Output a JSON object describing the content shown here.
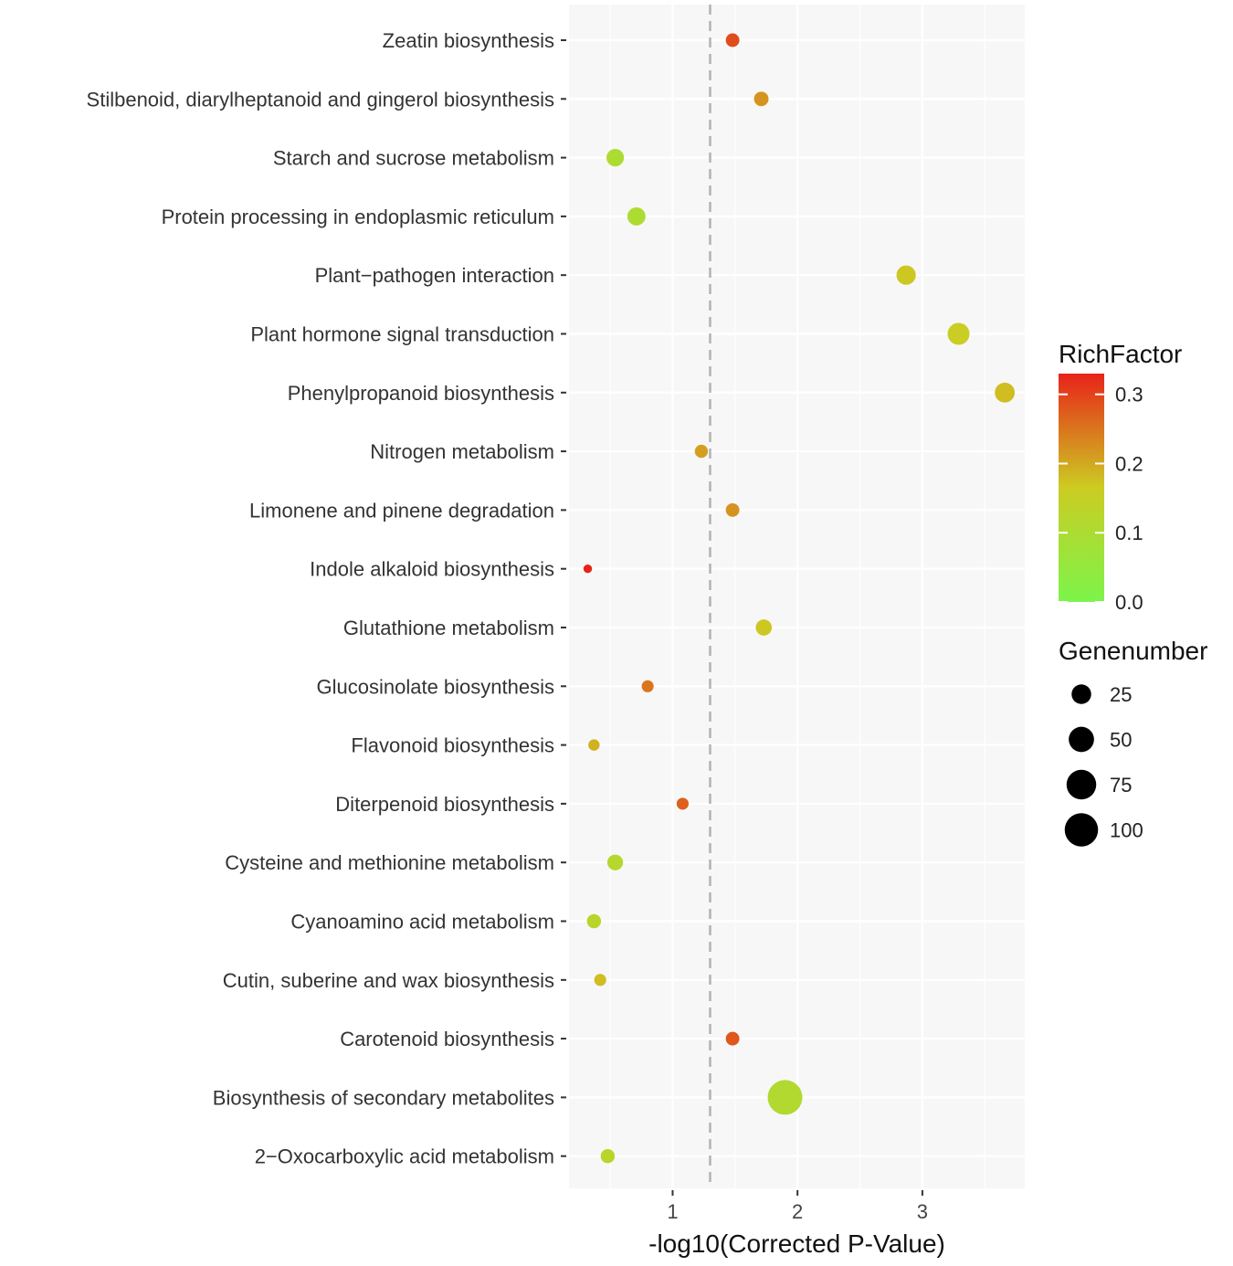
{
  "chart_data": {
    "type": "scatter",
    "title": "",
    "xlabel": "-log10(Corrected P-Value)",
    "ylabel": "",
    "xlim": [
      0.17,
      3.82
    ],
    "xticks": [
      1,
      2,
      3
    ],
    "grid": true,
    "threshold_line": {
      "x": 1.3,
      "style": "dashed"
    },
    "categories": [
      "Zeatin biosynthesis",
      "Stilbenoid, diarylheptanoid and gingerol biosynthesis",
      "Starch and sucrose metabolism",
      "Protein processing in endoplasmic reticulum",
      "Plant−pathogen interaction",
      "Plant hormone signal transduction",
      "Phenylpropanoid biosynthesis",
      "Nitrogen metabolism",
      "Limonene and pinene degradation",
      "Indole alkaloid biosynthesis",
      "Glutathione metabolism",
      "Glucosinolate biosynthesis",
      "Flavonoid biosynthesis",
      "Diterpenoid biosynthesis",
      "Cysteine and methionine metabolism",
      "Cyanoamino acid metabolism",
      "Cutin, suberine and wax biosynthesis",
      "Carotenoid biosynthesis",
      "Biosynthesis of secondary metabolites",
      "2−Oxocarboxylic acid metabolism"
    ],
    "points": [
      {
        "category": "Zeatin biosynthesis",
        "x": 1.48,
        "rich_factor": 0.29,
        "genes": 8
      },
      {
        "category": "Stilbenoid, diarylheptanoid and gingerol biosynthesis",
        "x": 1.71,
        "rich_factor": 0.22,
        "genes": 10
      },
      {
        "category": "Starch and sucrose metabolism",
        "x": 0.54,
        "rich_factor": 0.1,
        "genes": 18
      },
      {
        "category": "Protein processing in endoplasmic reticulum",
        "x": 0.71,
        "rich_factor": 0.1,
        "genes": 20
      },
      {
        "category": "Plant−pathogen interaction",
        "x": 2.87,
        "rich_factor": 0.17,
        "genes": 24
      },
      {
        "category": "Plant hormone signal transduction",
        "x": 3.29,
        "rich_factor": 0.16,
        "genes": 34
      },
      {
        "category": "Phenylpropanoid biosynthesis",
        "x": 3.66,
        "rich_factor": 0.18,
        "genes": 26
      },
      {
        "category": "Nitrogen metabolism",
        "x": 1.23,
        "rich_factor": 0.21,
        "genes": 7
      },
      {
        "category": "Limonene and pinene degradation",
        "x": 1.48,
        "rich_factor": 0.22,
        "genes": 8
      },
      {
        "category": "Indole alkaloid biosynthesis",
        "x": 0.32,
        "rich_factor": 0.33,
        "genes": 1
      },
      {
        "category": "Glutathione metabolism",
        "x": 1.73,
        "rich_factor": 0.17,
        "genes": 14
      },
      {
        "category": "Glucosinolate biosynthesis",
        "x": 0.8,
        "rich_factor": 0.25,
        "genes": 5
      },
      {
        "category": "Flavonoid biosynthesis",
        "x": 0.37,
        "rich_factor": 0.19,
        "genes": 4
      },
      {
        "category": "Diterpenoid biosynthesis",
        "x": 1.08,
        "rich_factor": 0.27,
        "genes": 5
      },
      {
        "category": "Cysteine and methionine metabolism",
        "x": 0.54,
        "rich_factor": 0.12,
        "genes": 13
      },
      {
        "category": "Cyanoamino acid metabolism",
        "x": 0.37,
        "rich_factor": 0.13,
        "genes": 9
      },
      {
        "category": "Cutin, suberine and wax biosynthesis",
        "x": 0.42,
        "rich_factor": 0.18,
        "genes": 5
      },
      {
        "category": "Carotenoid biosynthesis",
        "x": 1.48,
        "rich_factor": 0.28,
        "genes": 8
      },
      {
        "category": "Biosynthesis of secondary metabolites",
        "x": 1.9,
        "rich_factor": 0.11,
        "genes": 110
      },
      {
        "category": "2−Oxocarboxylic acid metabolism",
        "x": 0.48,
        "rich_factor": 0.13,
        "genes": 9
      }
    ],
    "color_legend": {
      "title": "RichFactor",
      "min": 0.0,
      "max": 0.33,
      "ticks": [
        0.0,
        0.1,
        0.2,
        0.3
      ],
      "tick_labels": [
        "0.0",
        "0.1",
        "0.2",
        "0.3"
      ],
      "color_low": "#7cf44a",
      "color_mid": "#cccc22",
      "color_high": "#e8231a"
    },
    "size_legend": {
      "title": "Genenumber",
      "values": [
        25,
        50,
        75,
        100
      ],
      "labels": [
        "25",
        "50",
        "75",
        "100"
      ]
    }
  }
}
